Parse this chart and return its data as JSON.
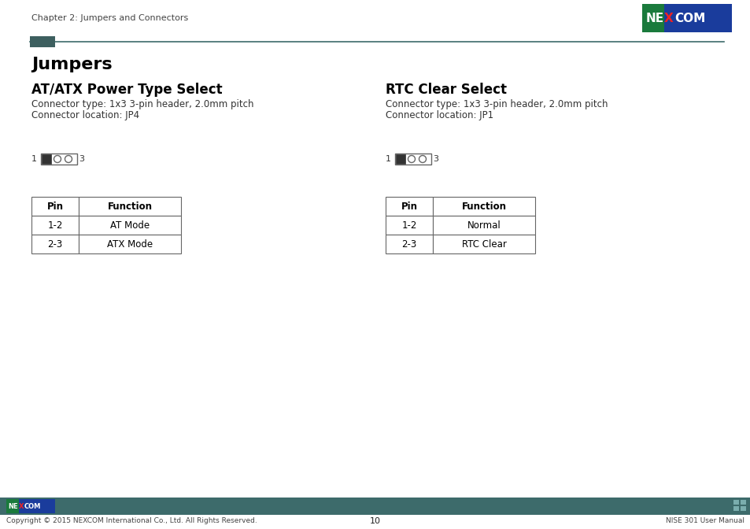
{
  "page_header_text": "Chapter 2: Jumpers and Connectors",
  "header_line_color": "#3d6b6b",
  "header_rect_color": "#3d5f5f",
  "nexcom_bg_green": "#1a7a3c",
  "nexcom_bg_blue": "#1a3c9c",
  "main_title": "Jumpers",
  "left_section_title": "AT/ATX Power Type Select",
  "left_connector_type": "Connector type: 1x3 3-pin header, 2.0mm pitch",
  "left_connector_location": "Connector location: JP4",
  "left_table_headers": [
    "Pin",
    "Function"
  ],
  "left_table_rows": [
    [
      "1-2",
      "AT Mode"
    ],
    [
      "2-3",
      "ATX Mode"
    ]
  ],
  "right_section_title": "RTC Clear Select",
  "right_connector_type": "Connector type: 1x3 3-pin header, 2.0mm pitch",
  "right_connector_location": "Connector location: JP1",
  "right_table_headers": [
    "Pin",
    "Function"
  ],
  "right_table_rows": [
    [
      "1-2",
      "Normal"
    ],
    [
      "2-3",
      "RTC Clear"
    ]
  ],
  "footer_bg": "#3d6b6b",
  "footer_copyright": "Copyright © 2015 NEXCOM International Co., Ltd. All Rights Reserved.",
  "footer_page": "10",
  "footer_manual": "NISE 301 User Manual",
  "bg_color": "#ffffff",
  "text_color": "#000000",
  "section_title_color": "#000000",
  "table_border_color": "#666666"
}
